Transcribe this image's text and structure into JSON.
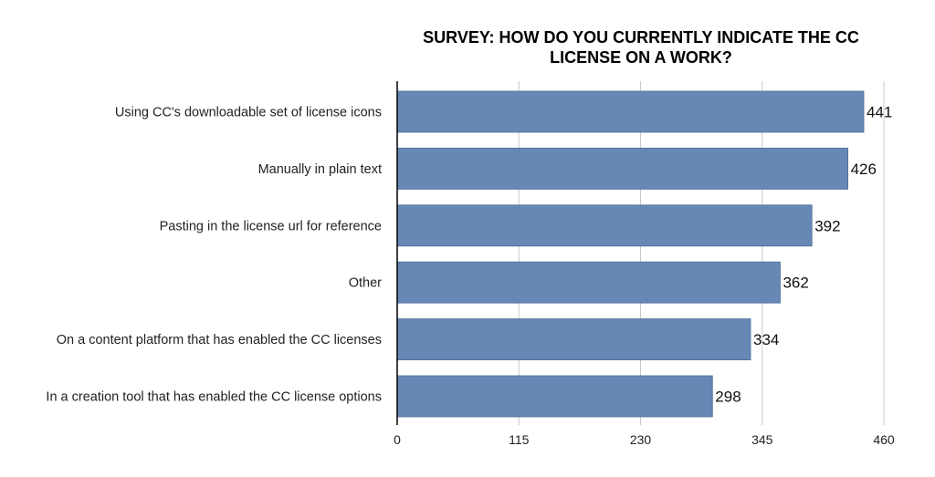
{
  "chart_data": {
    "type": "bar",
    "orientation": "horizontal",
    "title_lines": [
      "SURVEY: HOW DO YOU CURRENTLY INDICATE THE CC",
      "LICENSE ON A WORK?"
    ],
    "categories": [
      "Using CC's downloadable set of license icons",
      "Manually in plain text",
      "Pasting in the license url for reference",
      "Other",
      "On a content platform that has enabled the CC licenses",
      "In a creation tool that has enabled the CC license options"
    ],
    "values": [
      441,
      426,
      392,
      362,
      334,
      298
    ],
    "xlim": [
      0,
      460
    ],
    "xticks": [
      0,
      115,
      230,
      345,
      460
    ],
    "grid": true,
    "legend": "none",
    "bar_color": "#6788b5"
  }
}
